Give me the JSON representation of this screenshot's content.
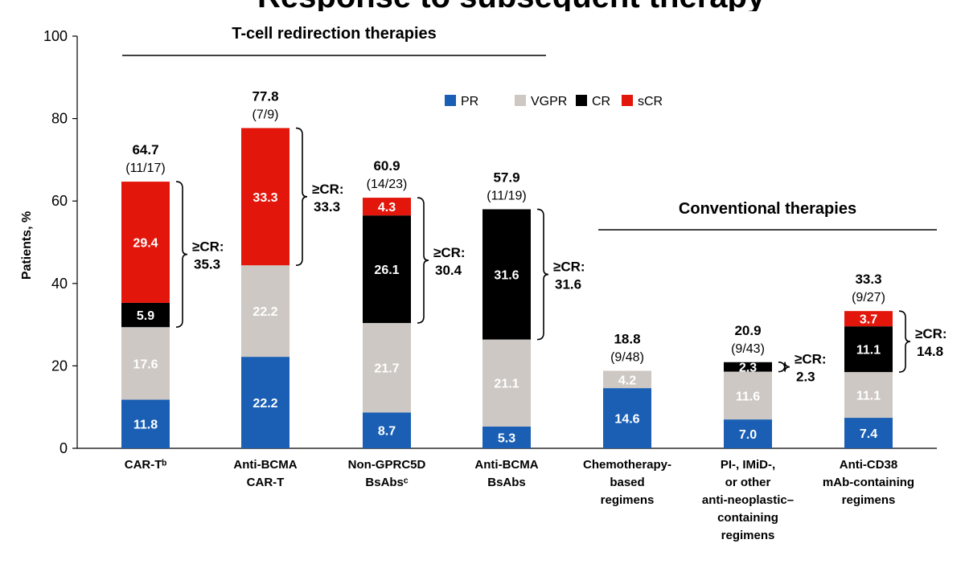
{
  "page_title": "Response to subsequent therapy",
  "chart_data": {
    "type": "bar",
    "stacked": true,
    "ylabel": "Patients, %",
    "ylim": [
      0,
      100
    ],
    "yticks": [
      0,
      20,
      40,
      60,
      80,
      100
    ],
    "grid": false,
    "legend_position": "top-center",
    "categories": [
      [
        "CAR-Tᵇ"
      ],
      [
        "Anti-BCMA",
        "CAR-T"
      ],
      [
        "Non-GPRC5D",
        "BsAbsᶜ"
      ],
      [
        "Anti-BCMA",
        "BsAbs"
      ],
      [
        "Chemotherapy-",
        "based",
        "regimens"
      ],
      [
        "PI-, IMiD-,",
        "or other",
        "anti-neoplastic–",
        "containing",
        "regimens"
      ],
      [
        "Anti-CD38",
        "mAb-containing",
        "regimens"
      ]
    ],
    "series": [
      {
        "name": "PR",
        "color": "#1a5fb4",
        "values": [
          11.8,
          22.2,
          8.7,
          5.3,
          14.6,
          7.0,
          7.4
        ],
        "labels": [
          "11.8",
          "22.2",
          "8.7",
          "5.3",
          "14.6",
          "7.0",
          "7.4"
        ]
      },
      {
        "name": "VGPR",
        "color": "#cdc8c3",
        "values": [
          17.6,
          22.2,
          21.7,
          21.1,
          4.2,
          11.6,
          11.1
        ],
        "labels": [
          "17.6",
          "22.2",
          "21.7",
          "21.1",
          "4.2",
          "11.6",
          "11.1"
        ]
      },
      {
        "name": "CR",
        "color": "#000000",
        "values": [
          5.9,
          0,
          26.1,
          31.6,
          0,
          2.3,
          11.1
        ],
        "labels": [
          "5.9",
          "",
          "26.1",
          "31.6",
          "",
          "2.3",
          "11.1"
        ]
      },
      {
        "name": "sCR",
        "color": "#e3160b",
        "values": [
          29.4,
          33.3,
          4.3,
          0,
          0,
          0,
          3.7
        ],
        "labels": [
          "29.4",
          "33.3",
          "4.3",
          "",
          "",
          "",
          "3.7"
        ]
      }
    ],
    "totals": [
      {
        "value": "64.7",
        "fraction": "(11/17)"
      },
      {
        "value": "77.8",
        "fraction": "(7/9)"
      },
      {
        "value": "60.9",
        "fraction": "(14/23)"
      },
      {
        "value": "57.9",
        "fraction": "(11/19)"
      },
      {
        "value": "18.8",
        "fraction": "(9/48)"
      },
      {
        "value": "20.9",
        "fraction": "(9/43)"
      },
      {
        "value": "33.3",
        "fraction": "(9/27)"
      }
    ],
    "cr_brackets": [
      {
        "category_index": 0,
        "label": "≥CR:",
        "value": "35.3"
      },
      {
        "category_index": 1,
        "label": "≥CR:",
        "value": "33.3"
      },
      {
        "category_index": 2,
        "label": "≥CR:",
        "value": "30.4"
      },
      {
        "category_index": 3,
        "label": "≥CR:",
        "value": "31.6"
      },
      {
        "category_index": 5,
        "label": "≥CR:",
        "value": "2.3"
      },
      {
        "category_index": 6,
        "label": "≥CR:",
        "value": "14.8"
      }
    ],
    "groups": [
      {
        "label": "T-cell redirection therapies",
        "from": 0,
        "to": 3
      },
      {
        "label": "Conventional therapies",
        "from": 4,
        "to": 6
      }
    ]
  }
}
